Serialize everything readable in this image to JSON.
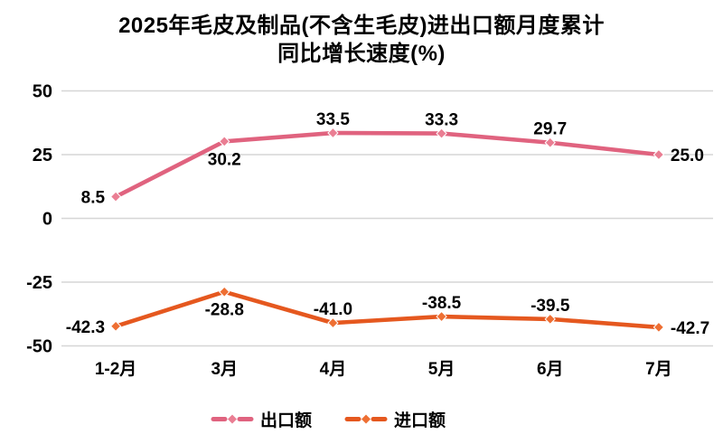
{
  "title": {
    "line1": "2025年毛皮及制品(不含生毛皮)进出口额月度累计",
    "line2": "同比增长速度(%)"
  },
  "chart_data": {
    "type": "line",
    "title": "2025年毛皮及制品(不含生毛皮)进出口额月度累计 同比增长速度(%)",
    "categories": [
      "1-2月",
      "3月",
      "4月",
      "5月",
      "6月",
      "7月"
    ],
    "series": [
      {
        "name": "出口额",
        "values": [
          8.5,
          30.2,
          33.5,
          33.3,
          29.7,
          25.0
        ],
        "labels": [
          "8.5",
          "30.2",
          "33.5",
          "33.3",
          "29.7",
          "25.0"
        ],
        "label_positions": [
          "left",
          "below",
          "above",
          "above",
          "above",
          "right"
        ],
        "color": "#e0637f",
        "marker_color": "#ea7e93",
        "marker": "diamond"
      },
      {
        "name": "进口额",
        "values": [
          -42.3,
          -28.8,
          -41.0,
          -38.5,
          -39.5,
          -42.7
        ],
        "labels": [
          "-42.3",
          "-28.8",
          "-41.0",
          "-38.5",
          "-39.5",
          "-42.7"
        ],
        "label_positions": [
          "left",
          "below",
          "above",
          "above",
          "above",
          "right"
        ],
        "color": "#e5581f",
        "marker_color": "#ee6f33",
        "marker": "diamond"
      }
    ],
    "yticks": [
      50,
      25,
      0,
      -25,
      -50
    ],
    "ytick_labels": [
      "50",
      "25",
      "0",
      "-25",
      "-50"
    ],
    "ylim": [
      -50,
      50
    ],
    "xlabel": "",
    "ylabel": "",
    "grid": true,
    "gridline_color": "#d6d6d6",
    "legend_position": "bottom",
    "background": "#ffffff",
    "text_color": "#000000"
  }
}
